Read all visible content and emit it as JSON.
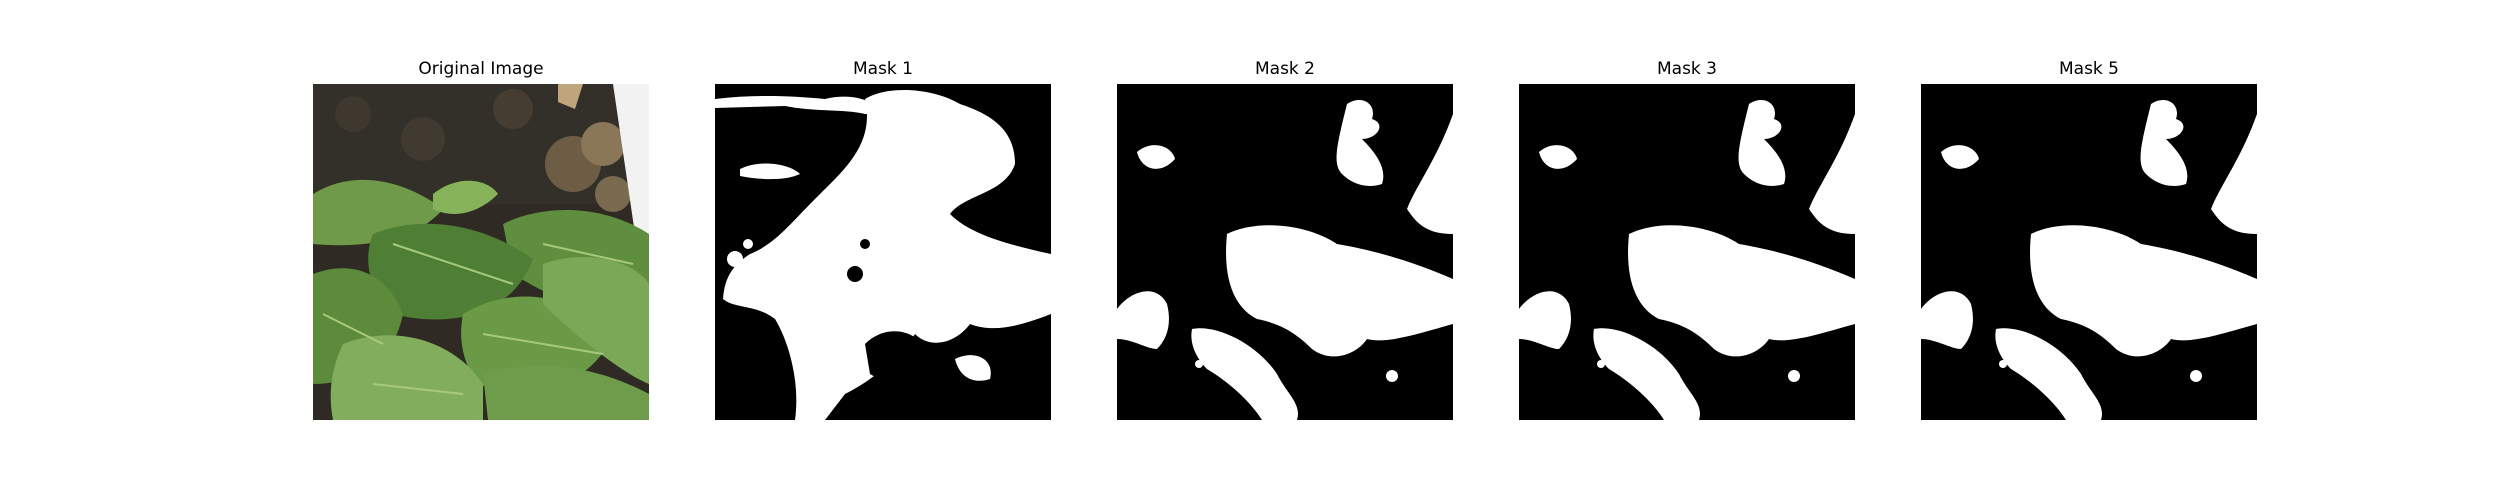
{
  "figure": {
    "panels": [
      {
        "title": "Original Image",
        "kind": "photo"
      },
      {
        "title": "Mask 1",
        "kind": "mask",
        "variant": "noisy"
      },
      {
        "title": "Mask 2",
        "kind": "mask",
        "variant": "smooth"
      },
      {
        "title": "Mask 3",
        "kind": "mask",
        "variant": "smooth"
      },
      {
        "title": "Mask 5",
        "kind": "mask",
        "variant": "smooth"
      }
    ]
  },
  "colors": {
    "background": "#ffffff",
    "mask_background": "#000000",
    "mask_foreground": "#ffffff",
    "soil_dark": "#2b2722",
    "soil_mid": "#4a4238",
    "soil_light": "#8a7a62",
    "leaf_dark": "#3f6a2c",
    "leaf_mid": "#5f8f3e",
    "leaf_light": "#86b25a",
    "leaf_highlight": "#a7c97a"
  }
}
